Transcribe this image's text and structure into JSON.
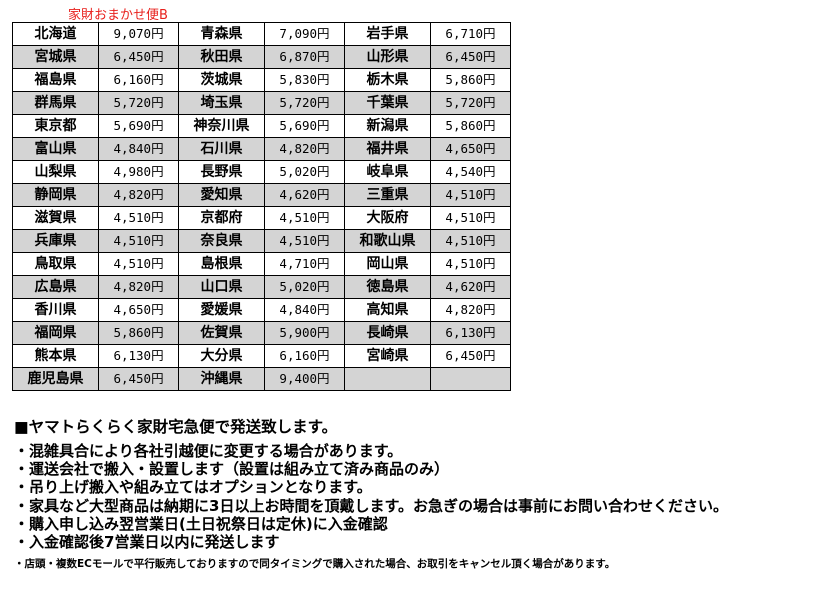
{
  "title": "家財おまかせ便B",
  "rows": [
    [
      "北海道",
      "9,070円",
      "青森県",
      "7,090円",
      "岩手県",
      "6,710円"
    ],
    [
      "宮城県",
      "6,450円",
      "秋田県",
      "6,870円",
      "山形県",
      "6,450円"
    ],
    [
      "福島県",
      "6,160円",
      "茨城県",
      "5,830円",
      "栃木県",
      "5,860円"
    ],
    [
      "群馬県",
      "5,720円",
      "埼玉県",
      "5,720円",
      "千葉県",
      "5,720円"
    ],
    [
      "東京都",
      "5,690円",
      "神奈川県",
      "5,690円",
      "新潟県",
      "5,860円"
    ],
    [
      "富山県",
      "4,840円",
      "石川県",
      "4,820円",
      "福井県",
      "4,650円"
    ],
    [
      "山梨県",
      "4,980円",
      "長野県",
      "5,020円",
      "岐阜県",
      "4,540円"
    ],
    [
      "静岡県",
      "4,820円",
      "愛知県",
      "4,620円",
      "三重県",
      "4,510円"
    ],
    [
      "滋賀県",
      "4,510円",
      "京都府",
      "4,510円",
      "大阪府",
      "4,510円"
    ],
    [
      "兵庫県",
      "4,510円",
      "奈良県",
      "4,510円",
      "和歌山県",
      "4,510円"
    ],
    [
      "鳥取県",
      "4,510円",
      "島根県",
      "4,710円",
      "岡山県",
      "4,510円"
    ],
    [
      "広島県",
      "4,820円",
      "山口県",
      "5,020円",
      "徳島県",
      "4,620円"
    ],
    [
      "香川県",
      "4,650円",
      "愛媛県",
      "4,840円",
      "高知県",
      "4,820円"
    ],
    [
      "福岡県",
      "5,860円",
      "佐賀県",
      "5,900円",
      "長崎県",
      "6,130円"
    ],
    [
      "熊本県",
      "6,130円",
      "大分県",
      "6,160円",
      "宮崎県",
      "6,450円"
    ],
    [
      "鹿児島県",
      "6,450円",
      "沖縄県",
      "9,400円",
      "",
      ""
    ]
  ],
  "heading": "■ヤマトらくらく家財宅急便で発送致します。",
  "bullets": [
    "・混雑具合により各社引越便に変更する場合があります。",
    "・運送会社で搬入・設置します（設置は組み立て済み商品のみ）",
    "・吊り上げ搬入や組み立てはオプションとなります。",
    "・家具など大型商品は納期に3日以上お時間を頂戴します。お急ぎの場合は事前にお問い合わせください。",
    "・購入申し込み翌営業日(土日祝祭日は定休)に入金確認",
    "・入金確認後7営業日以内に発送します"
  ],
  "note": "・店頭・複数ECモールで平行販売しておりますので同タイミングで購入された場合、お取引をキャンセル頂く場合があります。",
  "colors": {
    "title": "#e8201c",
    "shaded_row": "#d4d4d4"
  }
}
